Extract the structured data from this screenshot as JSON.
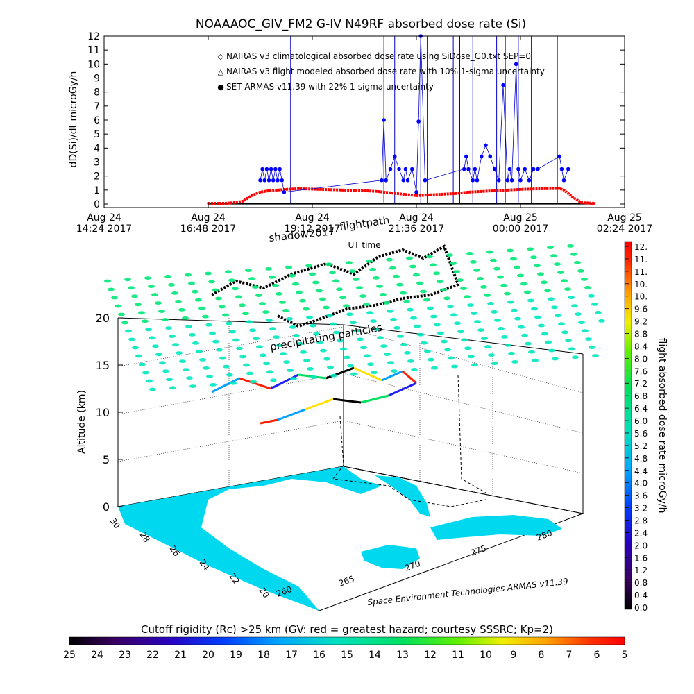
{
  "chart_data": [
    {
      "type": "scatter",
      "title": "NOAAAOC_GIV_FM2 G-IV   N49RF  absorbed dose rate (Si)",
      "xlabel": "UT time",
      "ylabel": "dD(Si)/dt microGy/h",
      "ylim": [
        0,
        12
      ],
      "xlim_hours": [
        0,
        12
      ],
      "yticks": [
        "0",
        "1",
        "2",
        "3",
        "4",
        "5",
        "6",
        "7",
        "8",
        "9",
        "10",
        "11",
        "12"
      ],
      "xticks": [
        {
          "h": 0,
          "line1": "Aug 24",
          "line2": "14:24 2017"
        },
        {
          "h": 2.4,
          "line1": "Aug 24",
          "line2": "16:48 2017"
        },
        {
          "h": 4.8,
          "line1": "Aug 24",
          "line2": "19:12 2017"
        },
        {
          "h": 7.2,
          "line1": "Aug 24",
          "line2": "21:36 2017"
        },
        {
          "h": 9.6,
          "line1": "Aug 25",
          "line2": "00:00 2017"
        },
        {
          "h": 12,
          "line1": "Aug 25",
          "line2": "02:24 2017"
        }
      ],
      "legend": {
        "placement": "top-center",
        "entries": [
          {
            "symbol": "◇",
            "color": "#ff0000",
            "label": "NAIRAS v3 climatological absorbed dose rate using SiDose_G0.txt SEP=0"
          },
          {
            "symbol": "△",
            "color": "#000000",
            "label": "NAIRAS v3 flight modeled absorbed dose rate with 10% 1-sigma uncertainty"
          },
          {
            "symbol": "●",
            "color": "#0000ff",
            "label": "SET ARMAS v11.39 with 22% 1-sigma uncertainty"
          }
        ]
      },
      "series": [
        {
          "name": "NAIRAS v3 climatological absorbed dose rate using SiDose_G0.txt SEP=0",
          "color": "#ff0000",
          "x": [
            2.4,
            2.8,
            3.0,
            3.2,
            3.3,
            3.4,
            3.6,
            3.8,
            4.0,
            4.2,
            4.5,
            5.0,
            5.5,
            6.0,
            6.3,
            6.6,
            6.9,
            7.2,
            7.5,
            7.8,
            8.1,
            8.4,
            8.7,
            9.0,
            9.3,
            9.6,
            9.9,
            10.2,
            10.5,
            10.6,
            10.8,
            11.0,
            11.3
          ],
          "values": [
            0.05,
            0.05,
            0.1,
            0.2,
            0.4,
            0.6,
            0.85,
            0.95,
            1.0,
            1.05,
            1.1,
            1.05,
            1.0,
            0.95,
            0.9,
            0.8,
            0.7,
            0.6,
            0.65,
            0.7,
            0.75,
            0.85,
            0.9,
            0.95,
            1.0,
            1.05,
            1.08,
            1.1,
            1.12,
            1.0,
            0.5,
            0.1,
            0.05
          ]
        },
        {
          "name": "NAIRAS v3 flight modeled absorbed dose rate with 10% 1-sigma uncertainty",
          "color": "#000000",
          "x": [
            2.4,
            3.0,
            4.0,
            5.0,
            6.0,
            7.0,
            8.0,
            9.0,
            10.0,
            10.8,
            11.3
          ],
          "values": [
            0.02,
            0.02,
            0.02,
            0.02,
            0.02,
            0.02,
            0.02,
            0.02,
            0.02,
            0.02,
            0.02
          ]
        },
        {
          "name": "SET ARMAS v11.39 with 22% 1-sigma uncertainty",
          "color": "#0000ff",
          "x": [
            3.6,
            3.65,
            3.7,
            3.75,
            3.8,
            3.85,
            3.9,
            3.95,
            4.0,
            4.05,
            4.1,
            4.15,
            6.4,
            6.45,
            6.5,
            6.6,
            6.7,
            6.8,
            6.9,
            6.95,
            7.0,
            7.1,
            7.2,
            7.25,
            7.3,
            7.4,
            8.3,
            8.35,
            8.4,
            8.5,
            8.55,
            8.6,
            8.7,
            8.8,
            8.9,
            9.0,
            9.1,
            9.2,
            9.3,
            9.35,
            9.4,
            9.5,
            9.55,
            9.6,
            9.7,
            9.8,
            9.9,
            10.0,
            10.5,
            10.55,
            10.6,
            10.7
          ],
          "values": [
            1.7,
            2.5,
            1.7,
            2.5,
            1.7,
            2.5,
            1.7,
            2.5,
            1.7,
            2.5,
            1.7,
            0.85,
            1.7,
            6.0,
            1.7,
            2.5,
            3.4,
            2.5,
            1.7,
            2.5,
            1.7,
            2.5,
            0.85,
            5.9,
            12.0,
            1.7,
            2.5,
            3.4,
            2.5,
            1.7,
            2.5,
            1.7,
            3.4,
            4.2,
            3.4,
            2.5,
            1.7,
            8.5,
            1.7,
            2.5,
            1.7,
            10.0,
            2.5,
            1.7,
            2.5,
            1.7,
            2.5,
            2.5,
            3.4,
            2.5,
            1.7,
            2.5
          ]
        }
      ],
      "vertical_lines_hours": [
        4.3,
        5.0,
        6.45,
        6.7,
        7.3,
        7.45,
        8.05,
        8.2,
        8.5,
        9.05,
        9.25,
        9.55,
        9.85,
        10.45
      ]
    },
    {
      "type": "scatter",
      "subtype": "3d-flight-path",
      "zlabel": "Altitude (km)",
      "zticks": [
        "0",
        "5",
        "10",
        "15",
        "20"
      ],
      "lat_ticks": [
        "30",
        "28",
        "26",
        "24",
        "22",
        "20"
      ],
      "lon_ticks": [
        "265",
        "270",
        "275",
        "280"
      ],
      "lon_tick_extra": "260",
      "annotations": [
        "shadow",
        "flightpath",
        "precipitating particles",
        "Space Environment Technologies ARMAS v11.39"
      ],
      "annotation_texts": {
        "shadow": "shadow2017",
        "flightpath": "flightpath",
        "precip": "precipitating particles",
        "credit": "Space Environment Technologies ARMAS v11.39"
      }
    }
  ],
  "colorbar_right": {
    "label": "flight absorbed dose rate microGy/h",
    "ticks": [
      "12.",
      "11.",
      "11.",
      "10.",
      "10.",
      "9.6",
      "9.2",
      "8.8",
      "8.4",
      "8.0",
      "7.6",
      "7.2",
      "6.8",
      "6.4",
      "6.0",
      "5.6",
      "5.2",
      "4.8",
      "4.4",
      "4.0",
      "3.6",
      "3.2",
      "2.8",
      "2.4",
      "2.0",
      "1.6",
      "1.2",
      "0.8",
      "0.4",
      "0.0"
    ]
  },
  "colorbar_bottom": {
    "label": "Cutoff rigidity (Rc) >25 km (GV: red = greatest hazard; courtesy SSSRC; Kp=2)",
    "ticks": [
      "25",
      "24",
      "23",
      "22",
      "21",
      "20",
      "19",
      "18",
      "17",
      "16",
      "15",
      "14",
      "13",
      "12",
      "11",
      "10",
      "9",
      "8",
      "7",
      "6",
      "5"
    ]
  },
  "colors": {
    "dose_red": "#ff0000",
    "armas_blue": "#0000ff",
    "land_cyan": "#00d8f0",
    "grid_green": "#00e878",
    "grid_teal": "#00e8c0"
  }
}
